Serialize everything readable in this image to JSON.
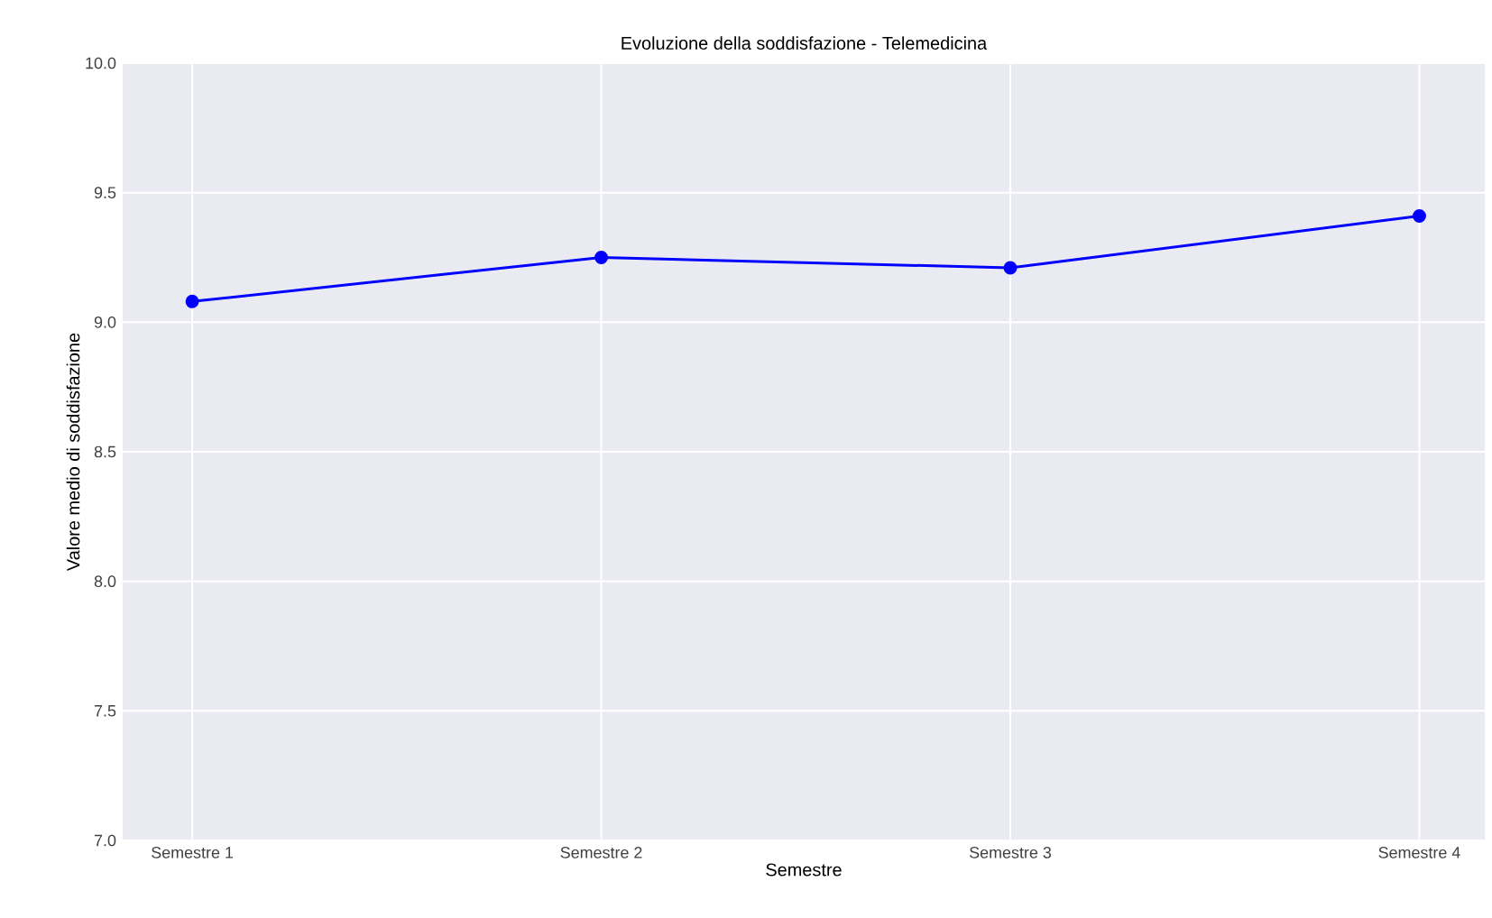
{
  "chart_data": {
    "type": "line",
    "title": "Evoluzione della soddisfazione - Telemedicina",
    "xlabel": "Semestre",
    "ylabel": "Valore medio di soddisfazione",
    "categories": [
      "Semestre 1",
      "Semestre 2",
      "Semestre 3",
      "Semestre 4"
    ],
    "series": [
      {
        "color": "#0000ff",
        "values": [
          9.08,
          9.25,
          9.21,
          9.41
        ]
      }
    ],
    "ylim": [
      7.0,
      10.0
    ],
    "yticks": [
      {
        "value": 7.0,
        "label": "7.0"
      },
      {
        "value": 7.5,
        "label": "7.5"
      },
      {
        "value": 8.0,
        "label": "8.0"
      },
      {
        "value": 8.5,
        "label": "8.5"
      },
      {
        "value": 9.0,
        "label": "9.0"
      },
      {
        "value": 9.5,
        "label": "9.5"
      },
      {
        "value": 10.0,
        "label": "10.0"
      }
    ],
    "grid": true,
    "marker": "circle",
    "line_style": "solid"
  }
}
